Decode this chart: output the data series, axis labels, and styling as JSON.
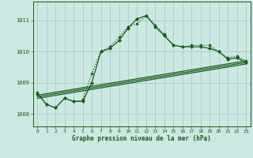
{
  "bg_color": "#cce8e2",
  "plot_bg_color": "#cce8e2",
  "grid_color": "#aacccc",
  "line_color": "#1a5c1a",
  "xlabel": "Graphe pression niveau de la mer (hPa)",
  "ylim": [
    1007.6,
    1011.6
  ],
  "xlim": [
    -0.5,
    23.5
  ],
  "yticks": [
    1008,
    1009,
    1010,
    1011
  ],
  "xticks": [
    0,
    1,
    2,
    3,
    4,
    5,
    6,
    7,
    8,
    9,
    10,
    11,
    12,
    13,
    14,
    15,
    16,
    17,
    18,
    19,
    20,
    21,
    22,
    23
  ],
  "series1_x": [
    0,
    1,
    2,
    3,
    4,
    5,
    6,
    7,
    8,
    9,
    10,
    11,
    12,
    13,
    14,
    15,
    16,
    17,
    18,
    19,
    20,
    21,
    22,
    23
  ],
  "series1_y": [
    1008.7,
    1008.3,
    1008.2,
    1008.5,
    1008.4,
    1008.45,
    1009.3,
    1010.0,
    1010.15,
    1010.45,
    1010.8,
    1010.9,
    1011.15,
    1010.85,
    1010.55,
    1010.2,
    1010.15,
    1010.2,
    1010.2,
    1010.2,
    1010.0,
    1009.8,
    1009.85,
    1009.7
  ],
  "series2_x": [
    0,
    1,
    2,
    3,
    4,
    5,
    6,
    7,
    8,
    9,
    10,
    11,
    12,
    13,
    14,
    15,
    16,
    17,
    18,
    19,
    20,
    21,
    22,
    23
  ],
  "series2_y": [
    1008.65,
    1008.3,
    1008.2,
    1008.5,
    1008.4,
    1008.4,
    1009.0,
    1010.0,
    1010.1,
    1010.35,
    1010.75,
    1011.05,
    1011.15,
    1010.8,
    1010.5,
    1010.2,
    1010.15,
    1010.15,
    1010.15,
    1010.1,
    1010.0,
    1009.75,
    1009.8,
    1009.65
  ],
  "trend1_x": [
    0,
    23
  ],
  "trend1_y": [
    1008.6,
    1009.7
  ],
  "trend2_x": [
    0,
    23
  ],
  "trend2_y": [
    1008.55,
    1009.65
  ],
  "trend3_x": [
    0,
    23
  ],
  "trend3_y": [
    1008.5,
    1009.6
  ]
}
